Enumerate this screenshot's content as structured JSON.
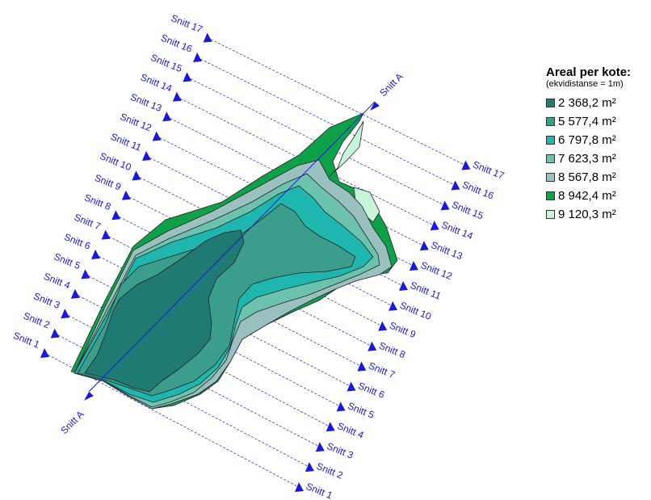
{
  "map": {
    "axis_label": "Snitt A",
    "section_labels": [
      "Snitt 1",
      "Snitt 2",
      "Snitt 3",
      "Snitt 4",
      "Snitt 5",
      "Snitt 6",
      "Snitt 7",
      "Snitt 8",
      "Snitt 9",
      "Snitt 10",
      "Snitt 11",
      "Snitt 12",
      "Snitt 13",
      "Snitt 14",
      "Snitt 15",
      "Snitt 16",
      "Snitt 17"
    ],
    "line_color": "#1a1ad6",
    "zone_colors": [
      "#1f7a74",
      "#3b9e8c",
      "#1fb6b0",
      "#6cc3ad",
      "#9bc0c0",
      "#0fa14a",
      "#c6f5dc"
    ]
  },
  "legend": {
    "title": "Areal per kote:",
    "subtitle": "(ekvidistanse = 1m)",
    "unit": "m²",
    "items": [
      {
        "value": "2 368,2",
        "color": "#1f7a74"
      },
      {
        "value": "5 577,4",
        "color": "#3b9e8c"
      },
      {
        "value": "6 797,8",
        "color": "#1fb6b0"
      },
      {
        "value": "7 623,3",
        "color": "#6cc3ad"
      },
      {
        "value": "8 567,8",
        "color": "#9bc0c0"
      },
      {
        "value": "8 942,4",
        "color": "#0fa14a"
      },
      {
        "value": "9 120,3",
        "color": "#c6f5dc"
      }
    ]
  }
}
